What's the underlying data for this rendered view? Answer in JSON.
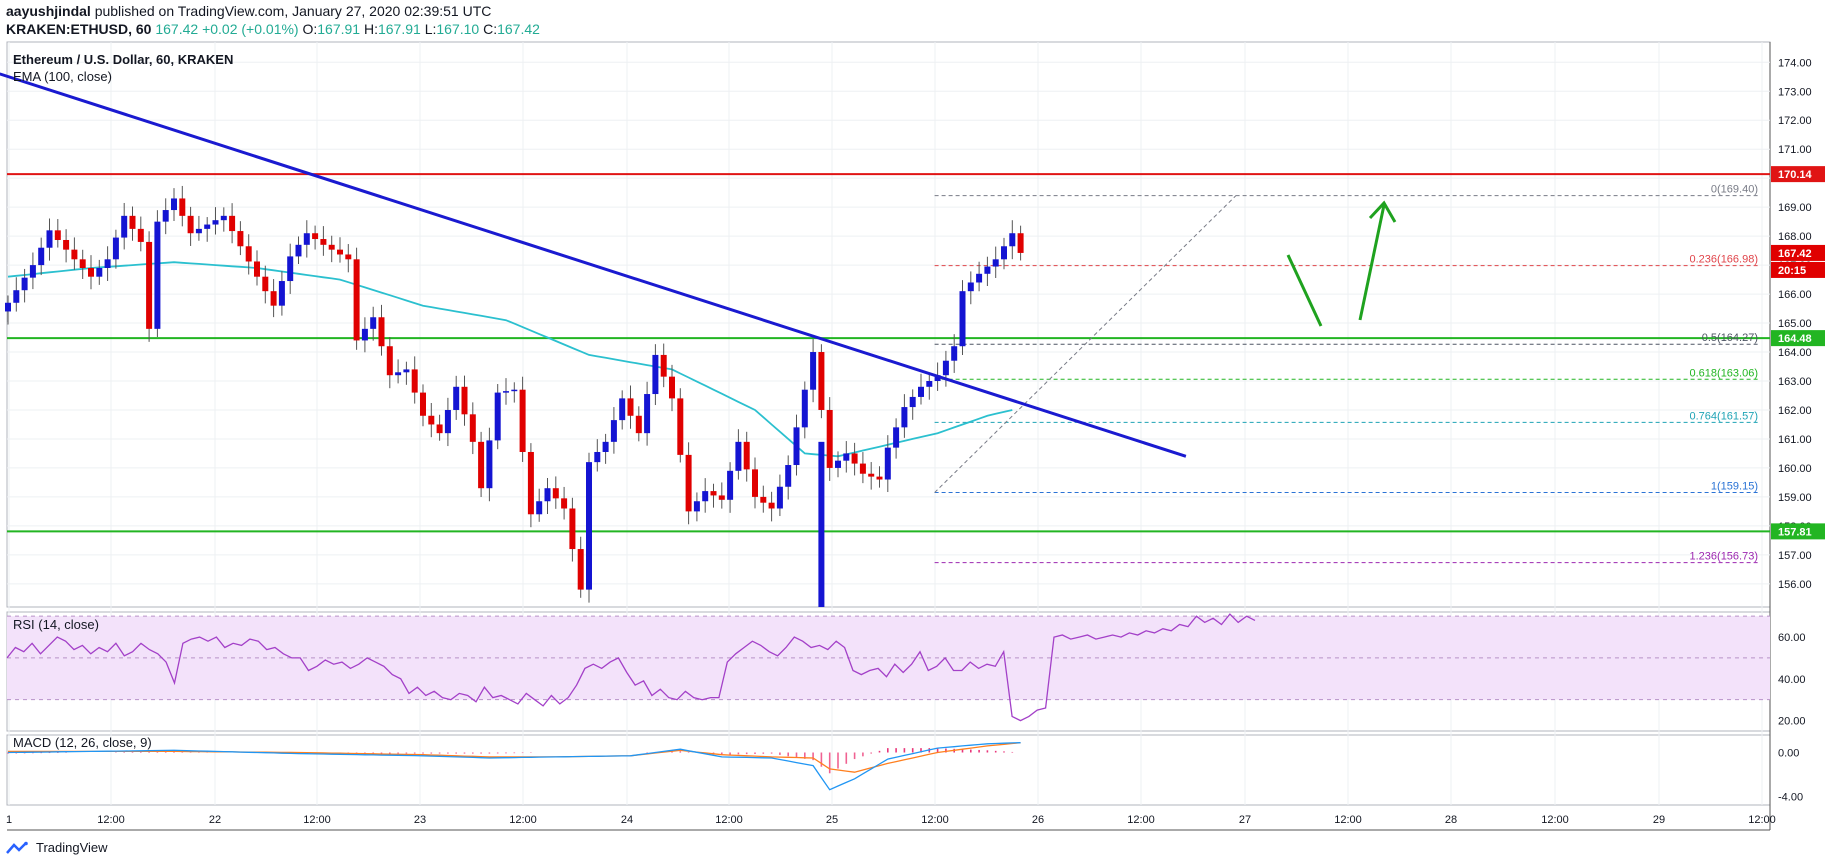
{
  "header": {
    "author": "aayushjindal",
    "published": "published on TradingView.com, January 27, 2020 02:39:51 UTC",
    "symbol": "KRAKEN:ETHUSD, 60",
    "last": "167.42",
    "change": "+0.02 (+0.01%)",
    "ohlc_prefix": {
      "o": "O:",
      "h": "H:",
      "l": "L:",
      "c": "C:"
    },
    "o": "167.91",
    "h": "167.91",
    "l": "167.10",
    "c": "167.42"
  },
  "legend": {
    "title": "Ethereum / U.S. Dollar, 60, KRAKEN",
    "ema": "EMA (100, close)",
    "rsi": "RSI (14, close)",
    "macd": "MACD (12, 26, close, 9)"
  },
  "footer": {
    "brand": "TradingView"
  },
  "colors": {
    "up": "#1414d2",
    "down": "#e00000",
    "ema": "#2bc0cf",
    "trend": "#1a1ad0",
    "resistance": "#e01414",
    "support": "#22b522",
    "arrow": "#1fa21f",
    "rsi_fill": "#f3e2fa",
    "rsi_line": "#a340c8",
    "macd_line": "#2196f3",
    "signal_line": "#ff7f1e",
    "hist": "#e9367a"
  },
  "chart_data": [
    {
      "type": "candlestick",
      "title": "Ethereum / U.S. Dollar, 60, KRAKEN",
      "ylim": [
        155.2,
        174.7
      ],
      "y_ticks": [
        "174.00",
        "173.00",
        "172.00",
        "171.00",
        "170.00",
        "169.00",
        "168.00",
        "167.00",
        "166.00",
        "165.00",
        "164.00",
        "163.00",
        "162.00",
        "161.00",
        "160.00",
        "159.00",
        "158.00",
        "157.00",
        "156.00"
      ],
      "x_ticks": [
        "1",
        "12:00",
        "22",
        "12:00",
        "23",
        "12:00",
        "24",
        "12:00",
        "25",
        "12:00",
        "26",
        "12:00",
        "27",
        "12:00",
        "28",
        "12:00",
        "29",
        "12:00"
      ],
      "candle_anchors": [
        [
          0,
          165.7
        ],
        [
          3,
          167.0
        ],
        [
          5,
          168.2
        ],
        [
          8,
          167.2
        ],
        [
          10,
          166.6
        ],
        [
          12,
          167.2
        ],
        [
          14,
          168.7
        ],
        [
          16,
          167.8
        ],
        [
          17,
          164.8
        ],
        [
          18,
          168.5
        ],
        [
          20,
          169.3
        ],
        [
          22,
          168.1
        ],
        [
          26,
          168.7
        ],
        [
          30,
          166.6
        ],
        [
          32,
          165.6
        ],
        [
          34,
          167.3
        ],
        [
          36,
          168.1
        ],
        [
          38,
          167.7
        ],
        [
          41,
          167.2
        ],
        [
          42,
          164.4
        ],
        [
          44,
          165.2
        ],
        [
          46,
          163.2
        ],
        [
          48,
          163.4
        ],
        [
          50,
          161.8
        ],
        [
          52,
          161.2
        ],
        [
          54,
          162.8
        ],
        [
          56,
          160.9
        ],
        [
          57,
          159.3
        ],
        [
          59,
          162.6
        ],
        [
          61,
          162.7
        ],
        [
          63,
          158.4
        ],
        [
          65,
          159.3
        ],
        [
          67,
          158.6
        ],
        [
          69,
          155.8
        ],
        [
          70,
          160.2
        ],
        [
          72,
          160.9
        ],
        [
          74,
          162.4
        ],
        [
          76,
          161.2
        ],
        [
          78,
          163.9
        ],
        [
          80,
          162.4
        ],
        [
          82,
          158.5
        ],
        [
          84,
          159.2
        ],
        [
          86,
          158.9
        ],
        [
          88,
          160.9
        ],
        [
          90,
          159.0
        ],
        [
          92,
          158.6
        ],
        [
          94,
          160.1
        ],
        [
          97,
          164.0
        ],
        [
          99,
          160.0
        ],
        [
          101,
          160.5
        ],
        [
          103,
          159.8
        ],
        [
          105,
          159.6
        ],
        [
          106,
          160.7
        ],
        [
          108,
          162.1
        ],
        [
          110,
          162.8
        ],
        [
          112,
          163.2
        ],
        [
          114,
          164.2
        ],
        [
          115,
          166.1
        ],
        [
          117,
          166.7
        ],
        [
          119,
          167.2
        ],
        [
          121,
          168.1
        ],
        [
          122,
          167.42
        ]
      ],
      "drop_candle": {
        "index": 98,
        "open": 160.9,
        "close": 155.2
      },
      "ema_anchors": [
        [
          0,
          166.6
        ],
        [
          10,
          166.9
        ],
        [
          20,
          167.1
        ],
        [
          30,
          166.9
        ],
        [
          40,
          166.5
        ],
        [
          50,
          165.6
        ],
        [
          60,
          165.1
        ],
        [
          70,
          163.9
        ],
        [
          80,
          163.4
        ],
        [
          90,
          162.0
        ],
        [
          96,
          160.5
        ],
        [
          100,
          160.4
        ],
        [
          106,
          160.8
        ],
        [
          112,
          161.2
        ],
        [
          118,
          161.8
        ],
        [
          121,
          162.0
        ]
      ],
      "trendline": {
        "start": [
          -1,
          173.6
        ],
        "end": [
          113,
          160.4
        ]
      },
      "horizontal_levels": [
        {
          "value": 170.14,
          "label": "170.14",
          "kind": "resistance"
        },
        {
          "value": 164.48,
          "label": "164.48",
          "kind": "support"
        },
        {
          "value": 157.81,
          "label": "157.81",
          "kind": "support"
        }
      ],
      "fibonacci": {
        "from_index": 102,
        "to_index": 122,
        "levels": [
          {
            "value": 169.4,
            "label": "0(169.40)",
            "color": "#787b86"
          },
          {
            "value": 166.98,
            "label": "0.236(166.98)",
            "color": "#e0444a"
          },
          {
            "value": 164.27,
            "label": "0.5(164.27)",
            "color": "#4e5563"
          },
          {
            "value": 163.06,
            "label": "0.618(163.06)",
            "color": "#22b522"
          },
          {
            "value": 161.57,
            "label": "0.764(161.57)",
            "color": "#1ea3b5"
          },
          {
            "value": 159.15,
            "label": "1(159.15)",
            "color": "#2a73d5"
          },
          {
            "value": 156.73,
            "label": "1.236(156.73)",
            "color": "#9c27b0"
          }
        ]
      },
      "last_price_badges": [
        {
          "value": "167.42",
          "color": "#e00000"
        },
        {
          "value": "20:15",
          "color": "#e00000"
        }
      ]
    },
    {
      "type": "line",
      "title": "RSI (14, close)",
      "ylim": [
        15,
        72
      ],
      "y_ticks": [
        "60.00",
        "40.00",
        "20.00"
      ],
      "band": [
        30,
        70
      ],
      "values": [
        50,
        55,
        53,
        57,
        52,
        56,
        60,
        58,
        54,
        56,
        52,
        55,
        53,
        57,
        51,
        53,
        57,
        54,
        52,
        48,
        38,
        57,
        59,
        60,
        58,
        60,
        55,
        57,
        56,
        59,
        58,
        54,
        55,
        52,
        50,
        50,
        44,
        46,
        49,
        47,
        48,
        45,
        47,
        50,
        48,
        46,
        42,
        40,
        33,
        36,
        32,
        34,
        31,
        30,
        33,
        32,
        29,
        36,
        31,
        32,
        30,
        28,
        33,
        30,
        27,
        32,
        28,
        31,
        37,
        45,
        47,
        45,
        48,
        50,
        43,
        37,
        39,
        32,
        35,
        31,
        30,
        34,
        31,
        30,
        31,
        31,
        48,
        52,
        55,
        58,
        56,
        53,
        51,
        55,
        60,
        58,
        55,
        56,
        54,
        58,
        55,
        44,
        42,
        44,
        45,
        41,
        47,
        43,
        47,
        53,
        44,
        46,
        50,
        44,
        44,
        48,
        45,
        47,
        46,
        53,
        22,
        20,
        22,
        25,
        26,
        60,
        61,
        59,
        60,
        61,
        59,
        60,
        61,
        60,
        62,
        61,
        63,
        62,
        64,
        63,
        66,
        65,
        70,
        67,
        69,
        66,
        71,
        67,
        70,
        68
      ]
    },
    {
      "type": "macd",
      "title": "MACD (12, 26, close, 9)",
      "ylim": [
        -4.8,
        1.6
      ],
      "y_ticks": [
        "0.00",
        "-4.00"
      ],
      "macd_anchors": [
        [
          0,
          0.0
        ],
        [
          20,
          0.2
        ],
        [
          35,
          -0.1
        ],
        [
          50,
          -0.3
        ],
        [
          58,
          -0.5
        ],
        [
          66,
          -0.4
        ],
        [
          75,
          -0.3
        ],
        [
          81,
          0.3
        ],
        [
          86,
          -0.4
        ],
        [
          92,
          -0.5
        ],
        [
          97,
          -1.2
        ],
        [
          99,
          -3.4
        ],
        [
          102,
          -2.4
        ],
        [
          106,
          -0.6
        ],
        [
          112,
          0.4
        ],
        [
          118,
          0.8
        ],
        [
          122,
          0.9
        ]
      ],
      "signal_anchors": [
        [
          0,
          0.1
        ],
        [
          20,
          0.1
        ],
        [
          35,
          0.0
        ],
        [
          50,
          -0.2
        ],
        [
          58,
          -0.4
        ],
        [
          66,
          -0.4
        ],
        [
          75,
          -0.3
        ],
        [
          81,
          0.2
        ],
        [
          86,
          -0.2
        ],
        [
          92,
          -0.4
        ],
        [
          97,
          -0.5
        ],
        [
          99,
          -1.5
        ],
        [
          102,
          -1.8
        ],
        [
          106,
          -1.0
        ],
        [
          112,
          0.0
        ],
        [
          118,
          0.6
        ],
        [
          122,
          0.9
        ]
      ]
    }
  ]
}
